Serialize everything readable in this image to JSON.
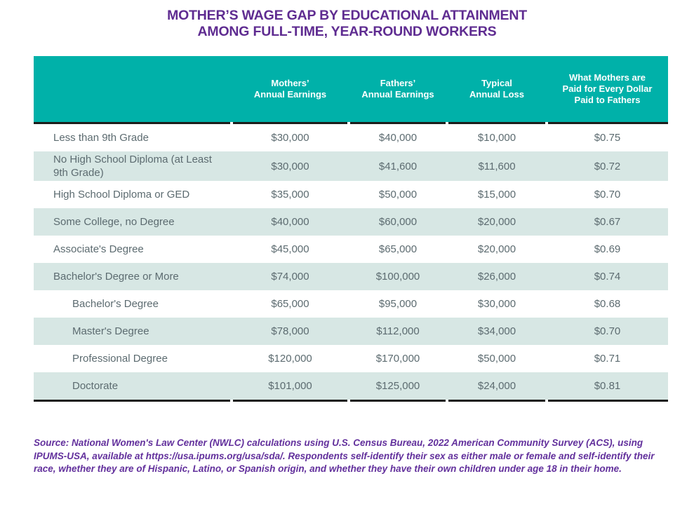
{
  "title": {
    "line1": "MOTHER’S WAGE GAP BY EDUCATIONAL ATTAINMENT",
    "line2": "AMONG FULL-TIME, YEAR-ROUND WORKERS"
  },
  "colors": {
    "title_purple": "#5F2C91",
    "header_teal": "#00B1A9",
    "row_shade_teal": "#D7E7E4",
    "body_text_gray": "#5C6B70",
    "rule_dark": "#1D1D1B",
    "source_purple": "#62309C"
  },
  "table": {
    "header": {
      "col_blank": "",
      "col_mothers": {
        "lines": [
          "Mothers’",
          "Annual Earnings"
        ]
      },
      "col_fathers": {
        "lines": [
          "Fathers’",
          "Annual Earnings"
        ]
      },
      "col_loss": {
        "lines": [
          "Typical",
          "Annual Loss"
        ]
      },
      "col_per_dollar": {
        "lines": [
          "What Mothers are",
          "Paid for Every Dollar",
          "Paid to Fathers"
        ]
      }
    },
    "rows": [
      {
        "label": "Less than 9th Grade",
        "mothers": "$30,000",
        "fathers": "$40,000",
        "loss": "$10,000",
        "per_dollar": "$0.75"
      },
      {
        "label": "No High School Diploma (at Least 9th Grade)",
        "mothers": "$30,000",
        "fathers": "$41,600",
        "loss": "$11,600",
        "per_dollar": "$0.72"
      },
      {
        "label": "High School Diploma or GED",
        "mothers": "$35,000",
        "fathers": "$50,000",
        "loss": "$15,000",
        "per_dollar": "$0.70"
      },
      {
        "label": "Some College, no Degree",
        "mothers": "$40,000",
        "fathers": "$60,000",
        "loss": "$20,000",
        "per_dollar": "$0.67"
      },
      {
        "label": "Associate's Degree",
        "mothers": "$45,000",
        "fathers": "$65,000",
        "loss": "$20,000",
        "per_dollar": "$0.69"
      },
      {
        "label": "Bachelor's Degree or More",
        "mothers": "$74,000",
        "fathers": "$100,000",
        "loss": "$26,000",
        "per_dollar": "$0.74"
      },
      {
        "label": "Bachelor's Degree",
        "mothers": "$65,000",
        "fathers": "$95,000",
        "loss": "$30,000",
        "per_dollar": "$0.68"
      },
      {
        "label": "Master's Degree",
        "mothers": "$78,000",
        "fathers": "$112,000",
        "loss": "$34,000",
        "per_dollar": "$0.70"
      },
      {
        "label": "Professional Degree",
        "mothers": "$120,000",
        "fathers": "$170,000",
        "loss": "$50,000",
        "per_dollar": "$0.71"
      },
      {
        "label": "Doctorate",
        "mothers": "$101,000",
        "fathers": "$125,000",
        "loss": "$24,000",
        "per_dollar": "$0.81"
      }
    ]
  },
  "source_note": "Source: National Women's Law Center (NWLC) calculations using U.S. Census Bureau, 2022 American Community Survey (ACS), using IPUMS-USA, available at https://usa.ipums.org/usa/sda/. Respondents self-identify their sex as either male or female and self-identify their race, whether they are of Hispanic, Latino, or Spanish origin, and whether they have their own children under age 18 in their home.",
  "chart_data": {
    "type": "table",
    "title": "MOTHER'S WAGE GAP BY EDUCATIONAL ATTAINMENT AMONG FULL-TIME, YEAR-ROUND WORKERS",
    "columns": [
      "",
      "Mothers' Annual Earnings",
      "Fathers' Annual Earnings",
      "Typical Annual Loss",
      "What Mothers are Paid for Every Dollar Paid to Fathers"
    ],
    "rows": [
      [
        "Less than 9th Grade",
        30000,
        40000,
        10000,
        0.75
      ],
      [
        "No High School Diploma (at Least 9th Grade)",
        30000,
        41600,
        11600,
        0.72
      ],
      [
        "High School Diploma or GED",
        35000,
        50000,
        15000,
        0.7
      ],
      [
        "Some College, no Degree",
        40000,
        60000,
        20000,
        0.67
      ],
      [
        "Associate's Degree",
        45000,
        65000,
        20000,
        0.69
      ],
      [
        "Bachelor's Degree or More",
        74000,
        100000,
        26000,
        0.74
      ],
      [
        "Bachelor's Degree",
        65000,
        95000,
        30000,
        0.68
      ],
      [
        "Master's Degree",
        78000,
        112000,
        34000,
        0.7
      ],
      [
        "Professional Degree",
        120000,
        170000,
        50000,
        0.71
      ],
      [
        "Doctorate",
        101000,
        125000,
        24000,
        0.81
      ]
    ]
  }
}
